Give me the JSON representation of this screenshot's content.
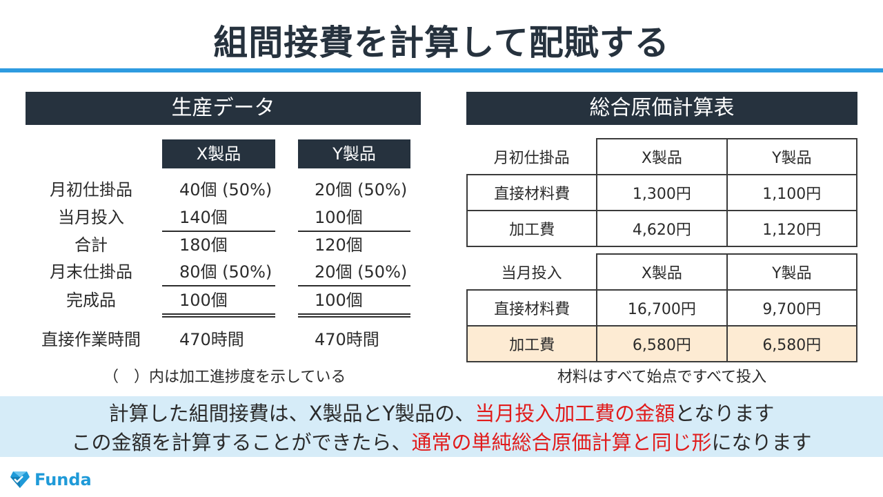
{
  "title": "組間接費を計算して配賦する",
  "production": {
    "header": "生産データ",
    "col_x": "X製品",
    "col_y": "Y製品",
    "rows": [
      {
        "label": "月初仕掛品",
        "x": "40個 (50%)",
        "y": "20個 (50%)"
      },
      {
        "label": "当月投入",
        "x": "140個",
        "y": "100個"
      },
      {
        "label": "合計",
        "x": "180個",
        "y": "120個"
      },
      {
        "label": "月末仕掛品",
        "x": "80個 (50%)",
        "y": "20個 (50%)"
      },
      {
        "label": "完成品",
        "x": "100個",
        "y": "100個"
      }
    ],
    "hours": {
      "label": "直接作業時間",
      "x": "470時間",
      "y": "470時間"
    },
    "note": "（　）内は加工進捗度を示している"
  },
  "cost_table": {
    "header": "総合原価計算表",
    "beginning": {
      "label": "月初仕掛品",
      "col_x": "X製品",
      "col_y": "Y製品",
      "rows": [
        {
          "label": "直接材料費",
          "x": "1,300円",
          "y": "1,100円"
        },
        {
          "label": "加工費",
          "x": "4,620円",
          "y": "1,120円"
        }
      ]
    },
    "current": {
      "label": "当月投入",
      "col_x": "X製品",
      "col_y": "Y製品",
      "rows": [
        {
          "label": "直接材料費",
          "x": "16,700円",
          "y": "9,700円"
        },
        {
          "label": "加工費",
          "x": "6,580円",
          "y": "6,580円"
        }
      ]
    },
    "note": "材料はすべて始点ですべて投入"
  },
  "callout": {
    "line1_a": "計算した組間接費は、X製品とY製品の、",
    "line1_red": "当月投入加工費の金額",
    "line1_b": "となります",
    "line2_a": "この金額を計算することができたら、",
    "line2_red": "通常の単純総合原価計算と同じ形",
    "line2_b": "になります"
  },
  "brand": {
    "name": "Funda",
    "icon": "funda-diamond-logo",
    "color": "#1f9ad8"
  },
  "colors": {
    "navy": "#26323e",
    "accent_blue": "#2e9be0",
    "callout_bg": "#d6ecf8",
    "highlight": "#fdebd3",
    "emphasis_red": "#e11b1b"
  }
}
